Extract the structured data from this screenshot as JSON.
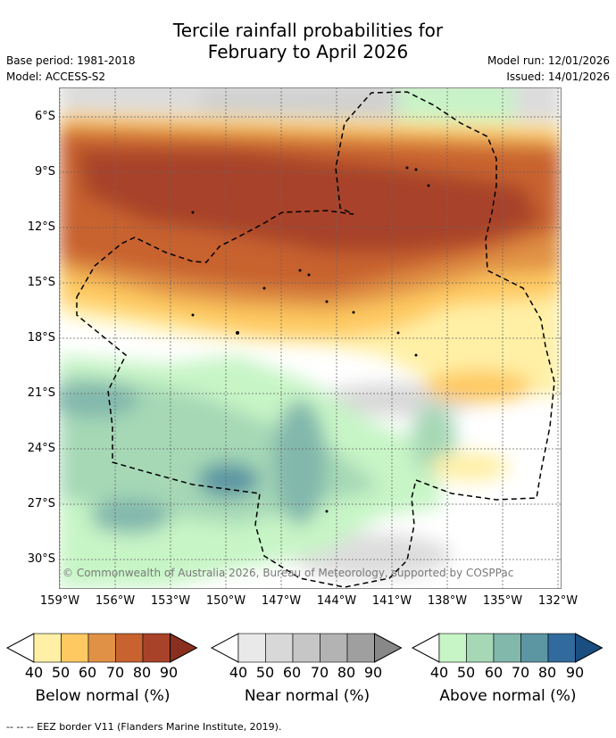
{
  "title_line1": "Tercile rainfall probabilities for",
  "title_line2": "February to April 2026",
  "base_period": "Base period: 1981-2018",
  "model": "Model: ACCESS-S2",
  "model_run": "Model run: 12/01/2026",
  "issued": "Issued: 14/01/2026",
  "copyright": "© Commonwealth of Australia 2026, Bureau of Meteorology, supported by COSPPac",
  "lat_labels": [
    "6°S",
    "9°S",
    "12°S",
    "15°S",
    "18°S",
    "21°S",
    "24°S",
    "27°S",
    "30°S"
  ],
  "lon_labels": [
    "159°W",
    "156°W",
    "153°W",
    "150°W",
    "147°W",
    "144°W",
    "141°W",
    "138°W",
    "135°W",
    "132°W"
  ],
  "colorbars": [
    {
      "title": "Below normal (%)",
      "ticks": [
        "40",
        "50",
        "60",
        "70",
        "80",
        "90"
      ],
      "colors": [
        "#fff0a6",
        "#fec961",
        "#e09145",
        "#c8622f",
        "#a8432a",
        "#8a2f1f"
      ]
    },
    {
      "title": "Near normal (%)",
      "ticks": [
        "40",
        "50",
        "60",
        "70",
        "80",
        "90"
      ],
      "colors": [
        "#e9e9e9",
        "#d8d8d8",
        "#c6c6c6",
        "#b3b3b3",
        "#9f9f9f",
        "#888888"
      ]
    },
    {
      "title": "Above normal (%)",
      "ticks": [
        "40",
        "50",
        "60",
        "70",
        "80",
        "90"
      ],
      "colors": [
        "#c7f5c6",
        "#a6d8b6",
        "#82b7ac",
        "#5c96a3",
        "#316a9c",
        "#1a4d80"
      ]
    }
  ],
  "footer": "--  --  -- EEZ border V11 (Flanders Marine Institute, 2019).",
  "colors": {
    "grid": "#666666",
    "eez": "#000000"
  }
}
